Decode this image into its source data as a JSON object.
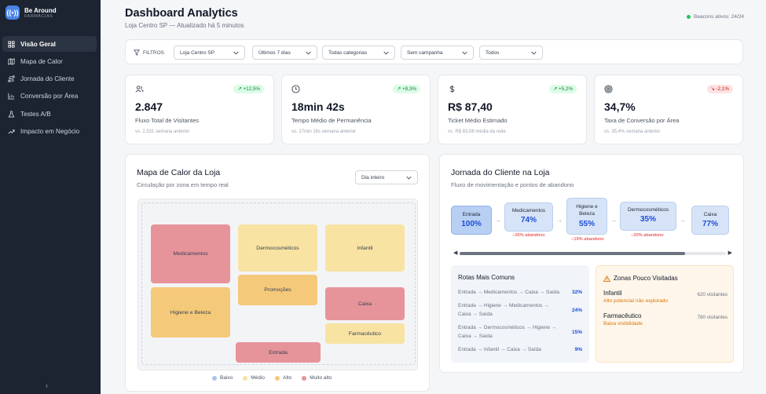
{
  "brand": {
    "name": "Be Around",
    "subtitle": "FARMÁCIAS"
  },
  "sidebar": {
    "items": [
      {
        "label": "Visão Geral",
        "icon": "grid-icon",
        "active": true
      },
      {
        "label": "Mapa de Calor",
        "icon": "map-icon",
        "active": false
      },
      {
        "label": "Jornada do Cliente",
        "icon": "route-icon",
        "active": false
      },
      {
        "label": "Conversão por Área",
        "icon": "bar-chart-icon",
        "active": false
      },
      {
        "label": "Testes A/B",
        "icon": "flask-icon",
        "active": false
      },
      {
        "label": "Impacto em Negócio",
        "icon": "trending-up-icon",
        "active": false
      }
    ],
    "collapse_label": "‹"
  },
  "header": {
    "title": "Dashboard Analytics",
    "subtitle": "Loja Centro SP — Atualizado há 5 minutos",
    "status": "Beacons ativos: 24/24"
  },
  "filters": {
    "label": "FILTROS",
    "selects": [
      "Loja Centro SP",
      "Últimos 7 dias",
      "Todas categorias",
      "Sem campanha",
      "Todos"
    ]
  },
  "kpis": [
    {
      "icon": "users-icon",
      "value": "2.847",
      "label": "Fluxo Total de Visitantes",
      "change": "+12,5%",
      "trend": "up",
      "comparison": "vs. 2.531 semana anterior"
    },
    {
      "icon": "clock-icon",
      "value": "18min 42s",
      "label": "Tempo Médio de Permanência",
      "change": "+8,3%",
      "trend": "up",
      "comparison": "vs. 17min 16s semana anterior"
    },
    {
      "icon": "dollar-icon",
      "value": "R$ 87,40",
      "label": "Ticket Médio Estimado",
      "change": "+5,2%",
      "trend": "up",
      "comparison": "vs. R$ 83,08 média da rede"
    },
    {
      "icon": "target-icon",
      "value": "34,7%",
      "label": "Taxa de Conversão por Área",
      "change": "-2,1%",
      "trend": "down",
      "comparison": "vs. 35,4% semana anterior"
    }
  ],
  "heatmap": {
    "title": "Mapa de Calor da Loja",
    "subtitle": "Circulação por zona em tempo real",
    "period": "Dia inteiro",
    "zones": [
      {
        "name": "Medicamentos",
        "level": "Muito alto"
      },
      {
        "name": "Dermocosméticos",
        "level": "Médio"
      },
      {
        "name": "Infantil",
        "level": "Médio"
      },
      {
        "name": "Promoções",
        "level": "Alto"
      },
      {
        "name": "Higiene e Beleza",
        "level": "Alto"
      },
      {
        "name": "Caixa",
        "level": "Muito alto"
      },
      {
        "name": "Farmacêutico",
        "level": "Médio"
      },
      {
        "name": "Entrada",
        "level": "Muito alto"
      }
    ],
    "legend": [
      {
        "label": "Baixo",
        "color": "#a7c4e6"
      },
      {
        "label": "Médio",
        "color": "#f8e3a3"
      },
      {
        "label": "Alto",
        "color": "#f5c97a"
      },
      {
        "label": "Muito alto",
        "color": "#e6939a"
      }
    ]
  },
  "journey": {
    "title": "Jornada do Cliente na Loja",
    "subtitle": "Fluxo de movimentação e pontos de abandono",
    "steps": [
      {
        "name": "Entrada",
        "pct": "100%",
        "drop": ""
      },
      {
        "name": "Medicamentos",
        "pct": "74%",
        "drop": "−26% abandono"
      },
      {
        "name": "Higiene e Beleza",
        "pct": "55%",
        "drop": "−19% abandono"
      },
      {
        "name": "Dermocosméticos",
        "pct": "35%",
        "drop": "−20% abandono"
      },
      {
        "name": "Caixa",
        "pct": "77%",
        "drop": ""
      }
    ],
    "routes_title": "Rotas Mais Comuns",
    "routes": [
      {
        "path": "Entrada → Medicamentos → Caixa → Saída",
        "pct": "32%"
      },
      {
        "path": "Entrada → Higiene → Medicamentos → Caixa → Saída",
        "pct": "24%"
      },
      {
        "path": "Entrada → Dermocosméticos → Higiene → Caixa → Saída",
        "pct": "15%"
      },
      {
        "path": "Entrada → Infantil → Caixa → Saída",
        "pct": "9%"
      }
    ],
    "low_title": "Zonas Pouco Visitadas",
    "low_zones": [
      {
        "name": "Infantil",
        "note": "Alto potencial não explorado",
        "visitors": "620 visitantes"
      },
      {
        "name": "Farmacêutico",
        "note": "Baixa visibilidade",
        "visitors": "780 visitantes"
      }
    ]
  }
}
